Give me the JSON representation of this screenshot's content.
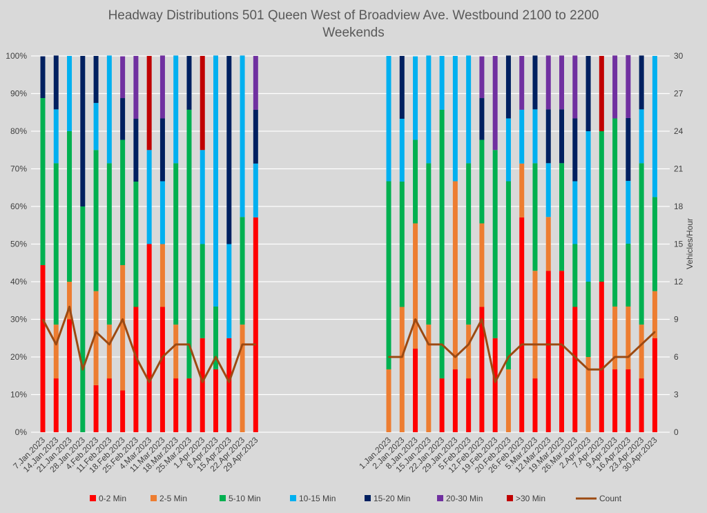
{
  "chart_data": {
    "type": "bar",
    "title": "Headway Distributions 501 Queen  West of Broadview Ave. Westbound 2100 to 2200",
    "subtitle": "Weekends",
    "ylabel": "",
    "y2label": "Vehicles/Hour",
    "ylim": [
      0,
      100
    ],
    "y2lim": [
      0,
      30
    ],
    "yticks": [
      "0%",
      "10%",
      "20%",
      "30%",
      "40%",
      "50%",
      "60%",
      "70%",
      "80%",
      "90%",
      "100%"
    ],
    "y2ticks": [
      "0",
      "3",
      "6",
      "9",
      "12",
      "15",
      "18",
      "21",
      "24",
      "27",
      "30"
    ],
    "grid": true,
    "legend_position": "bottom",
    "series_names": [
      "0-2 Min",
      "2-5 Min",
      "5-10 Min",
      "10-15 Min",
      "15-20 Min",
      "20-30 Min",
      ">30 Min",
      "Count"
    ],
    "colors": [
      "#ff0000",
      "#ed7d31",
      "#00b050",
      "#00b0f0",
      "#002060",
      "#7030a0",
      "#c00000",
      "#9c4a12"
    ],
    "groups": [
      {
        "categories": [
          "7.Jan.2023",
          "14.Jan.2023",
          "21.Jan.2023",
          "28.Jan.2023",
          "4.Feb.2023",
          "11.Feb.2023",
          "18.Feb.2023",
          "25.Feb.2023",
          "4.Mar.2023",
          "11.Mar.2023",
          "18.Mar.2023",
          "25.Mar.2023",
          "1.Apr.2023",
          "8.Apr.2023",
          "15.Apr.2023",
          "22.Apr.2023",
          "29.Apr.2023"
        ],
        "stacks": [
          [
            44.4,
            0,
            44.4,
            0,
            11.1,
            0,
            0
          ],
          [
            14.3,
            14.3,
            42.9,
            14.3,
            14.3,
            0,
            0
          ],
          [
            30,
            10,
            40,
            20,
            0,
            0,
            0
          ],
          [
            0,
            0,
            60,
            0,
            40,
            0,
            0
          ],
          [
            12.5,
            25,
            37.5,
            12.5,
            12.5,
            0,
            0
          ],
          [
            14.3,
            14.3,
            42.9,
            28.6,
            0,
            0,
            0
          ],
          [
            11.1,
            33.3,
            33.3,
            0,
            11.1,
            11.1,
            0
          ],
          [
            33.3,
            0,
            33.3,
            0,
            16.7,
            16.7,
            0
          ],
          [
            50,
            0,
            0,
            25,
            0,
            0,
            25
          ],
          [
            33.3,
            16.7,
            0,
            16.7,
            16.7,
            16.7,
            0
          ],
          [
            14.3,
            14.3,
            42.9,
            28.6,
            0,
            0,
            0
          ],
          [
            14.3,
            0,
            71.4,
            0,
            14.3,
            0,
            0
          ],
          [
            25,
            0,
            25,
            25,
            0,
            0,
            25
          ],
          [
            16.7,
            0,
            16.7,
            66.7,
            0,
            0,
            0
          ],
          [
            25,
            0,
            0,
            25,
            50,
            0,
            0
          ],
          [
            0,
            28.6,
            28.6,
            42.9,
            0,
            0,
            0
          ],
          [
            57.1,
            0,
            0,
            14.3,
            14.3,
            14.3,
            0
          ]
        ],
        "count": [
          9,
          7,
          10,
          5,
          8,
          7,
          9,
          6,
          4,
          6,
          7,
          7,
          4,
          6,
          4,
          7,
          7
        ]
      },
      {
        "categories": [
          "1.Jan.2023",
          "2.Jan.2023",
          "8.Jan.2023",
          "15.Jan.2023",
          "22.Jan.2023",
          "29.Jan.2023",
          "5.Feb.2023",
          "12.Feb.2023",
          "19.Feb.2023",
          "20.Feb.2023",
          "26.Feb.2023",
          "5.Mar.2023",
          "12.Mar.2023",
          "19.Mar.2023",
          "26.Mar.2023",
          "2.Apr.2023",
          "7.Apr.2023",
          "9.Apr.2023",
          "16.Apr.2023",
          "23.Apr.2023",
          "30.Apr.2023"
        ],
        "stacks": [
          [
            0,
            16.7,
            50,
            33.3,
            0,
            0,
            0
          ],
          [
            0,
            33.3,
            33.3,
            16.7,
            16.7,
            0,
            0
          ],
          [
            22.2,
            33.3,
            22.2,
            22.2,
            0,
            0,
            0
          ],
          [
            0,
            28.6,
            42.9,
            28.6,
            0,
            0,
            0
          ],
          [
            14.3,
            0,
            71.4,
            14.3,
            0,
            0,
            0
          ],
          [
            16.7,
            50,
            0,
            33.3,
            0,
            0,
            0
          ],
          [
            14.3,
            14.3,
            42.9,
            28.6,
            0,
            0,
            0
          ],
          [
            33.3,
            22.2,
            22.2,
            0,
            11.1,
            11.1,
            0
          ],
          [
            25,
            0,
            50,
            0,
            0,
            25,
            0
          ],
          [
            0,
            16.7,
            50,
            16.7,
            16.7,
            0,
            0
          ],
          [
            57.1,
            14.3,
            0,
            14.3,
            0,
            14.3,
            0
          ],
          [
            14.3,
            28.6,
            28.6,
            14.3,
            14.3,
            0,
            0
          ],
          [
            42.9,
            14.3,
            0,
            14.3,
            14.3,
            14.3,
            0
          ],
          [
            42.9,
            0,
            28.6,
            0,
            14.3,
            14.3,
            0
          ],
          [
            33.3,
            0,
            16.7,
            16.7,
            16.7,
            16.7,
            0
          ],
          [
            0,
            20,
            20,
            40,
            20,
            0,
            0
          ],
          [
            40,
            0,
            40,
            0,
            0,
            0,
            20
          ],
          [
            16.7,
            16.7,
            50,
            0,
            0,
            16.7,
            0
          ],
          [
            16.7,
            16.7,
            16.7,
            16.7,
            16.7,
            16.7,
            0
          ],
          [
            14.3,
            14.3,
            42.9,
            14.3,
            14.3,
            0,
            0
          ],
          [
            25,
            12.5,
            25,
            37.5,
            0,
            0,
            0
          ]
        ],
        "count": [
          6,
          6,
          9,
          7,
          7,
          6,
          7,
          9,
          4,
          6,
          7,
          7,
          7,
          7,
          6,
          5,
          5,
          6,
          6,
          7,
          8
        ]
      }
    ]
  }
}
